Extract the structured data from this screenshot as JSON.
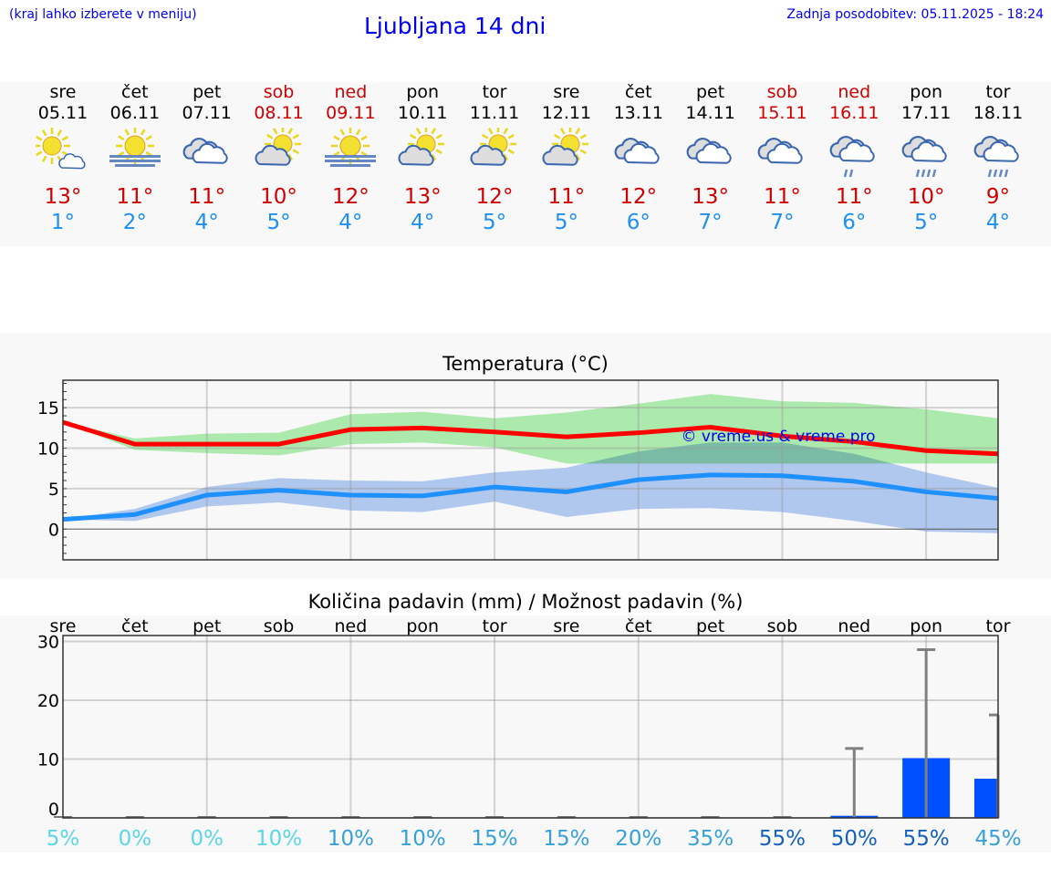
{
  "header": {
    "hint": "(kraj lahko izberete v meniju)",
    "title": "Ljubljana 14 dni",
    "updated": "Zadnja posodobitev: 05.11.2025 - 18:24"
  },
  "days": [
    {
      "name": "sre",
      "date": "05.11",
      "weekend": false,
      "icon": "sun-small-cloud",
      "max": "13°",
      "min": "1°"
    },
    {
      "name": "čet",
      "date": "06.11",
      "weekend": false,
      "icon": "sun-fog",
      "max": "11°",
      "min": "2°"
    },
    {
      "name": "pet",
      "date": "07.11",
      "weekend": false,
      "icon": "cloudy",
      "max": "11°",
      "min": "4°"
    },
    {
      "name": "sob",
      "date": "08.11",
      "weekend": true,
      "icon": "cloud-sun",
      "max": "10°",
      "min": "5°"
    },
    {
      "name": "ned",
      "date": "09.11",
      "weekend": true,
      "icon": "sun-fog",
      "max": "12°",
      "min": "4°"
    },
    {
      "name": "pon",
      "date": "10.11",
      "weekend": false,
      "icon": "cloud-sun",
      "max": "13°",
      "min": "4°"
    },
    {
      "name": "tor",
      "date": "11.11",
      "weekend": false,
      "icon": "cloud-sun",
      "max": "12°",
      "min": "5°"
    },
    {
      "name": "sre",
      "date": "12.11",
      "weekend": false,
      "icon": "cloud-sun",
      "max": "11°",
      "min": "5°"
    },
    {
      "name": "čet",
      "date": "13.11",
      "weekend": false,
      "icon": "cloudy",
      "max": "12°",
      "min": "6°"
    },
    {
      "name": "pet",
      "date": "14.11",
      "weekend": false,
      "icon": "cloudy",
      "max": "13°",
      "min": "7°"
    },
    {
      "name": "sob",
      "date": "15.11",
      "weekend": true,
      "icon": "cloudy",
      "max": "11°",
      "min": "7°"
    },
    {
      "name": "ned",
      "date": "16.11",
      "weekend": true,
      "icon": "cloud-light-rain",
      "max": "11°",
      "min": "6°"
    },
    {
      "name": "pon",
      "date": "17.11",
      "weekend": false,
      "icon": "cloud-rain",
      "max": "10°",
      "min": "5°"
    },
    {
      "name": "tor",
      "date": "18.11",
      "weekend": false,
      "icon": "cloud-rain",
      "max": "9°",
      "min": "4°"
    }
  ],
  "chart_data": [
    {
      "type": "line",
      "title": "Temperatura (°C)",
      "ylim": [
        -3.8,
        18.4
      ],
      "yticks": [
        0,
        5,
        10,
        15
      ],
      "grid": true,
      "watermark": "© vreme.us & vreme.pro",
      "colors": {
        "max": "#ff0000",
        "min": "#1e90ff",
        "max_band": "#a8e8a8",
        "min_band": "#a8c4f4"
      },
      "series": [
        {
          "key": "max",
          "values": [
            13.2,
            10.5,
            10.5,
            10.5,
            12.3,
            12.5,
            12.0,
            11.4,
            11.9,
            12.6,
            11.5,
            10.8,
            9.7,
            9.3
          ],
          "upper": [
            13.2,
            11.2,
            11.8,
            11.9,
            14.2,
            14.5,
            13.7,
            14.4,
            15.5,
            16.7,
            15.8,
            15.6,
            14.8,
            13.7
          ],
          "lower": [
            13.2,
            9.8,
            9.4,
            9.1,
            10.5,
            10.7,
            10.1,
            8.1,
            8.1,
            8.1,
            8.1,
            8.1,
            8.1,
            8.1
          ]
        },
        {
          "key": "min",
          "values": [
            1.2,
            1.8,
            4.2,
            4.8,
            4.2,
            4.1,
            5.2,
            4.6,
            6.1,
            6.7,
            6.6,
            5.9,
            4.6,
            3.8
          ],
          "upper": [
            1.2,
            2.5,
            5.2,
            6.3,
            6.0,
            5.9,
            7.0,
            7.6,
            9.6,
            10.7,
            10.7,
            9.3,
            7.0,
            5.1
          ],
          "lower": [
            1.2,
            1.0,
            2.8,
            3.3,
            2.3,
            2.1,
            3.4,
            1.5,
            2.5,
            2.6,
            2.1,
            1.0,
            -0.3,
            -0.5
          ]
        }
      ]
    },
    {
      "type": "bar",
      "title": "Količina padavin (mm) / Možnost padavin (%)",
      "ylim": [
        0,
        31
      ],
      "yticks": [
        0,
        10,
        20,
        30
      ],
      "grid": true,
      "categories": [
        "sre",
        "čet",
        "pet",
        "sob",
        "ned",
        "pon",
        "tor",
        "sre",
        "čet",
        "pet",
        "sob",
        "ned",
        "pon",
        "tor"
      ],
      "values": [
        0,
        0,
        0,
        0,
        0,
        0,
        0,
        0,
        0,
        0,
        0,
        0.2,
        10,
        6.5
      ],
      "error_max": [
        0,
        0,
        0,
        0,
        0,
        0,
        0,
        0,
        0,
        0,
        0,
        11.8,
        28.6,
        17.5
      ],
      "bar_color": "#0050ff",
      "probability": [
        {
          "label": "5%",
          "color": "#5ad6e6"
        },
        {
          "label": "0%",
          "color": "#5ad6e6"
        },
        {
          "label": "0%",
          "color": "#5ad6e6"
        },
        {
          "label": "10%",
          "color": "#5ad6e6"
        },
        {
          "label": "10%",
          "color": "#38a0d8"
        },
        {
          "label": "10%",
          "color": "#38a0d8"
        },
        {
          "label": "15%",
          "color": "#38a0d8"
        },
        {
          "label": "15%",
          "color": "#38a0d8"
        },
        {
          "label": "20%",
          "color": "#38a0d8"
        },
        {
          "label": "35%",
          "color": "#38a0d8"
        },
        {
          "label": "55%",
          "color": "#1560bd"
        },
        {
          "label": "50%",
          "color": "#1560bd"
        },
        {
          "label": "55%",
          "color": "#1560bd"
        },
        {
          "label": "45%",
          "color": "#38a0d8"
        }
      ]
    }
  ]
}
